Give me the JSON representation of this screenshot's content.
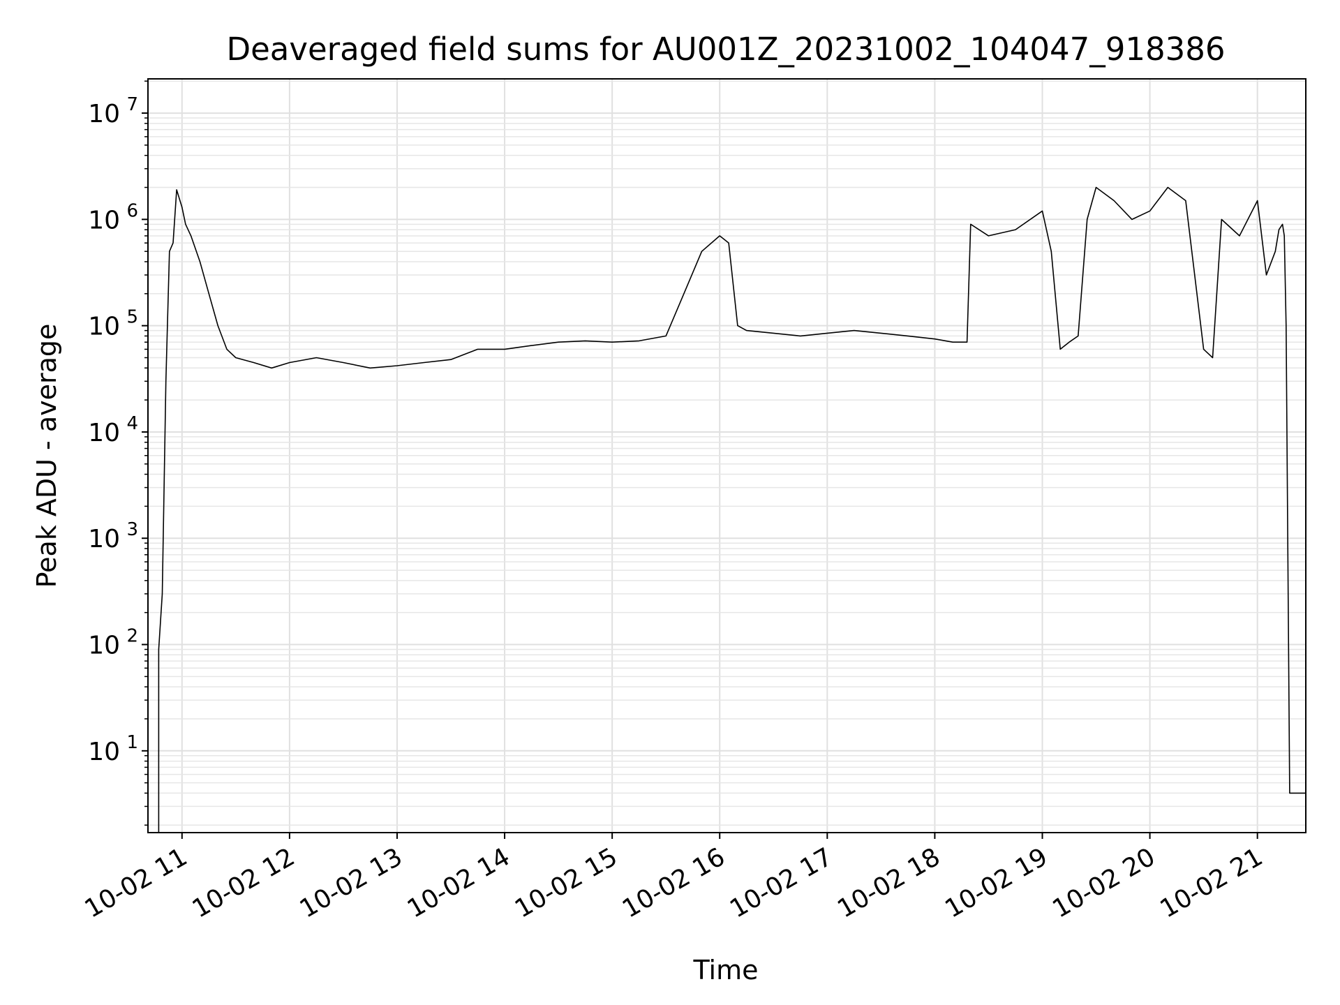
{
  "chart_data": {
    "type": "line",
    "title": "Deaveraged field sums for AU001Z_20231002_104047_918386",
    "xlabel": "Time",
    "ylabel": "Peak ADU - average",
    "yscale": "log",
    "ylim": [
      1.7,
      21000000
    ],
    "xlim": [
      "2023-10-02 10:41",
      "2023-10-02 21:27"
    ],
    "grid": true,
    "line_color": "#000000",
    "y_ticks": [
      {
        "base": "10",
        "exp": "1"
      },
      {
        "base": "10",
        "exp": "2"
      },
      {
        "base": "10",
        "exp": "3"
      },
      {
        "base": "10",
        "exp": "4"
      },
      {
        "base": "10",
        "exp": "5"
      },
      {
        "base": "10",
        "exp": "6"
      },
      {
        "base": "10",
        "exp": "7"
      }
    ],
    "x_ticks": [
      "10-02 11",
      "10-02 12",
      "10-02 13",
      "10-02 14",
      "10-02 15",
      "10-02 16",
      "10-02 17",
      "10-02 18",
      "10-02 19",
      "10-02 20",
      "10-02 21"
    ],
    "series": [
      {
        "x": [
          "2023-10-02 10:47",
          "2023-10-02 10:49",
          "2023-10-02 10:50",
          "2023-10-02 10:51",
          "2023-10-02 10:52",
          "2023-10-02 10:53",
          "2023-10-02 10:55",
          "2023-10-02 10:57",
          "2023-10-02 11:00",
          "2023-10-02 11:02",
          "2023-10-02 11:05",
          "2023-10-02 11:10",
          "2023-10-02 11:15",
          "2023-10-02 11:20",
          "2023-10-02 11:25",
          "2023-10-02 11:30",
          "2023-10-02 11:40",
          "2023-10-02 11:50",
          "2023-10-02 12:00",
          "2023-10-02 12:15",
          "2023-10-02 12:30",
          "2023-10-02 12:45",
          "2023-10-02 13:00",
          "2023-10-02 13:15",
          "2023-10-02 13:30",
          "2023-10-02 13:45",
          "2023-10-02 14:00",
          "2023-10-02 14:15",
          "2023-10-02 14:30",
          "2023-10-02 14:45",
          "2023-10-02 15:00",
          "2023-10-02 15:15",
          "2023-10-02 15:30",
          "2023-10-02 15:40",
          "2023-10-02 15:50",
          "2023-10-02 16:00",
          "2023-10-02 16:05",
          "2023-10-02 16:10",
          "2023-10-02 16:15",
          "2023-10-02 16:30",
          "2023-10-02 16:45",
          "2023-10-02 17:00",
          "2023-10-02 17:15",
          "2023-10-02 17:30",
          "2023-10-02 17:45",
          "2023-10-02 18:00",
          "2023-10-02 18:10",
          "2023-10-02 18:18",
          "2023-10-02 18:20",
          "2023-10-02 18:30",
          "2023-10-02 18:45",
          "2023-10-02 19:00",
          "2023-10-02 19:05",
          "2023-10-02 19:10",
          "2023-10-02 19:15",
          "2023-10-02 19:20",
          "2023-10-02 19:25",
          "2023-10-02 19:30",
          "2023-10-02 19:40",
          "2023-10-02 19:50",
          "2023-10-02 20:00",
          "2023-10-02 20:10",
          "2023-10-02 20:20",
          "2023-10-02 20:30",
          "2023-10-02 20:35",
          "2023-10-02 20:40",
          "2023-10-02 20:50",
          "2023-10-02 21:00",
          "2023-10-02 21:05",
          "2023-10-02 21:10",
          "2023-10-02 21:12",
          "2023-10-02 21:14",
          "2023-10-02 21:15",
          "2023-10-02 21:16",
          "2023-10-02 21:18",
          "2023-10-02 21:21",
          "2023-10-02 21:24",
          "2023-10-02 21:27"
        ],
        "y": [
          90,
          300,
          3000,
          30000,
          120000,
          500000,
          600000,
          1900000,
          1300000,
          900000,
          700000,
          400000,
          200000,
          100000,
          60000,
          50000,
          45000,
          40000,
          45000,
          50000,
          45000,
          40000,
          42000,
          45000,
          48000,
          60000,
          60000,
          65000,
          70000,
          72000,
          70000,
          72000,
          80000,
          200000,
          500000,
          700000,
          600000,
          100000,
          90000,
          85000,
          80000,
          85000,
          90000,
          85000,
          80000,
          75000,
          70000,
          70000,
          900000,
          700000,
          800000,
          1200000,
          500000,
          60000,
          70000,
          80000,
          1000000,
          2000000,
          1500000,
          1000000,
          1200000,
          2000000,
          1500000,
          60000,
          50000,
          1000000,
          700000,
          1500000,
          300000,
          500000,
          800000,
          900000,
          700000,
          100000,
          4,
          4,
          4,
          4
        ]
      }
    ]
  }
}
